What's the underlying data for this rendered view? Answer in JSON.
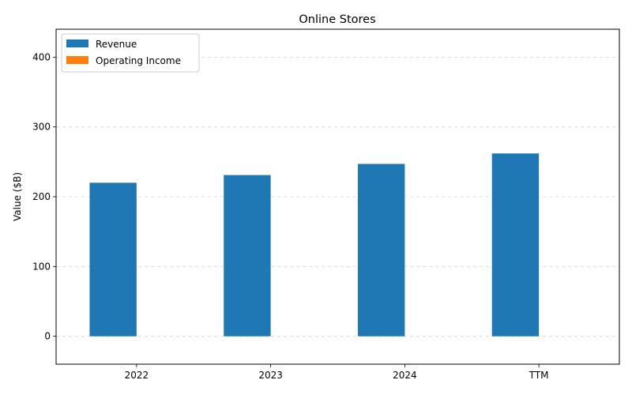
{
  "chart_data": {
    "type": "bar",
    "title": "Online Stores",
    "xlabel": "",
    "ylabel": "Value ($B)",
    "categories": [
      "2022",
      "2023",
      "2024",
      "TTM"
    ],
    "series": [
      {
        "name": "Revenue",
        "values": [
          220,
          231,
          247,
          262
        ],
        "color": "#1f77b4"
      },
      {
        "name": "Operating Income",
        "values": [
          0,
          0,
          0,
          0
        ],
        "color": "#ff7f0e"
      }
    ],
    "ylim": [
      -40,
      440
    ],
    "yticks": [
      0,
      100,
      200,
      300,
      400
    ],
    "grid": true,
    "legend_position": "top-left"
  }
}
